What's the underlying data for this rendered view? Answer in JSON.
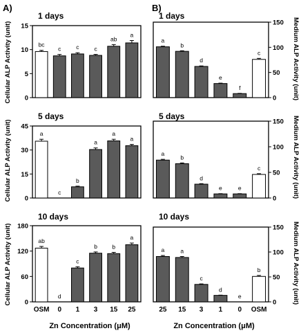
{
  "figure": {
    "left_panel_letter": "A)",
    "right_panel_letter": "B)",
    "left_y_label": "Cellular ALP Activity  (unit)",
    "right_y_label": "Medium ALP Activity  (unit)",
    "x_label": "Zn Concentration (μM)",
    "left_categories": [
      "OSM",
      "0",
      "1",
      "3",
      "15",
      "25"
    ],
    "right_categories": [
      "25",
      "15",
      "3",
      "1",
      "0",
      "OSM"
    ]
  },
  "chart_data": [
    {
      "type": "bar",
      "panel": "A",
      "title": "1 days",
      "ylabel": "Cellular ALP Activity  (unit)",
      "xlabel": "Zn Concentration (μM)",
      "categories": [
        "OSM",
        "0",
        "1",
        "3",
        "15",
        "25"
      ],
      "values": [
        9.6,
        8.7,
        9.1,
        8.8,
        10.7,
        11.4
      ],
      "errors": [
        0.25,
        0.3,
        0.25,
        0.2,
        0.35,
        0.5
      ],
      "letters": [
        "bc",
        "c",
        "c",
        "c",
        "ab",
        "a"
      ],
      "bar_colors": [
        "#ffffff",
        "#5a5a5a",
        "#5a5a5a",
        "#5a5a5a",
        "#5a5a5a",
        "#5a5a5a"
      ],
      "ylim": [
        0,
        15
      ],
      "yticks": [
        0,
        5,
        10,
        15
      ],
      "grid": false
    },
    {
      "type": "bar",
      "panel": "A",
      "title": "5 days",
      "ylabel": "Cellular ALP Activity  (unit)",
      "xlabel": "Zn Concentration (μM)",
      "categories": [
        "OSM",
        "0",
        "1",
        "3",
        "15",
        "25"
      ],
      "values": [
        35.5,
        0,
        7,
        30.3,
        35.7,
        32.7
      ],
      "errors": [
        1.2,
        0,
        0.4,
        1.0,
        1.0,
        0.8
      ],
      "letters": [
        "a",
        "c",
        "b",
        "a",
        "a",
        "a"
      ],
      "bar_colors": [
        "#ffffff",
        "#5a5a5a",
        "#5a5a5a",
        "#5a5a5a",
        "#5a5a5a",
        "#5a5a5a"
      ],
      "ylim": [
        0,
        45
      ],
      "yticks": [
        0,
        15,
        30,
        45
      ],
      "grid": false
    },
    {
      "type": "bar",
      "panel": "A",
      "title": "10 days",
      "ylabel": "Cellular ALP Activity  (unit)",
      "xlabel": "Zn Concentration (μM)",
      "categories": [
        "OSM",
        "0",
        "1",
        "3",
        "15",
        "25"
      ],
      "values": [
        127,
        0,
        80,
        115,
        114,
        135
      ],
      "errors": [
        4,
        0,
        3,
        3,
        3,
        4
      ],
      "letters": [
        "ab",
        "d",
        "c",
        "b",
        "b",
        "a"
      ],
      "bar_colors": [
        "#ffffff",
        "#5a5a5a",
        "#5a5a5a",
        "#5a5a5a",
        "#5a5a5a",
        "#5a5a5a"
      ],
      "ylim": [
        0,
        180
      ],
      "yticks": [
        0,
        60,
        120,
        180
      ],
      "grid": false
    },
    {
      "type": "bar",
      "panel": "B",
      "title": "1 days",
      "ylabel": "Medium ALP Activity  (unit)",
      "xlabel": "Zn Concentration (μM)",
      "categories": [
        "25",
        "15",
        "3",
        "1",
        "0",
        "OSM"
      ],
      "values": [
        101,
        92,
        62,
        28,
        8,
        76
      ],
      "errors": [
        1.2,
        1.2,
        1.0,
        0.8,
        0.5,
        2.0
      ],
      "letters": [
        "a",
        "b",
        "d",
        "e",
        "f",
        "c"
      ],
      "bar_colors": [
        "#5a5a5a",
        "#5a5a5a",
        "#5a5a5a",
        "#5a5a5a",
        "#5a5a5a",
        "#ffffff"
      ],
      "ylim": [
        0,
        150
      ],
      "yticks": [
        0,
        50,
        100,
        150
      ],
      "grid": false
    },
    {
      "type": "bar",
      "panel": "B",
      "title": "5 days",
      "ylabel": "Medium ALP Activity  (unit)",
      "xlabel": "Zn Concentration (μM)",
      "categories": [
        "25",
        "15",
        "3",
        "1",
        "0",
        "OSM"
      ],
      "values": [
        74,
        67,
        27,
        8,
        8,
        46
      ],
      "errors": [
        1.5,
        1.5,
        1.0,
        0.5,
        0.5,
        1.5
      ],
      "letters": [
        "a",
        "b",
        "d",
        "e",
        "e",
        "c"
      ],
      "bar_colors": [
        "#5a5a5a",
        "#5a5a5a",
        "#5a5a5a",
        "#5a5a5a",
        "#5a5a5a",
        "#ffffff"
      ],
      "ylim": [
        0,
        150
      ],
      "yticks": [
        0,
        50,
        100,
        150
      ],
      "grid": false
    },
    {
      "type": "bar",
      "panel": "B",
      "title": "10 days",
      "ylabel": "Medium ALP Activity  (unit)",
      "xlabel": "Zn Concentration (μM)",
      "categories": [
        "25",
        "15",
        "3",
        "1",
        "0",
        "OSM"
      ],
      "values": [
        91,
        89,
        35,
        13,
        0,
        51
      ],
      "errors": [
        2.0,
        2.0,
        1.0,
        0.5,
        0,
        2.0
      ],
      "letters": [
        "a",
        "a",
        "c",
        "d",
        "e",
        "b"
      ],
      "bar_colors": [
        "#5a5a5a",
        "#5a5a5a",
        "#5a5a5a",
        "#5a5a5a",
        "#5a5a5a",
        "#ffffff"
      ],
      "ylim": [
        0,
        150
      ],
      "yticks": [
        0,
        50,
        100,
        150
      ],
      "grid": false
    }
  ]
}
